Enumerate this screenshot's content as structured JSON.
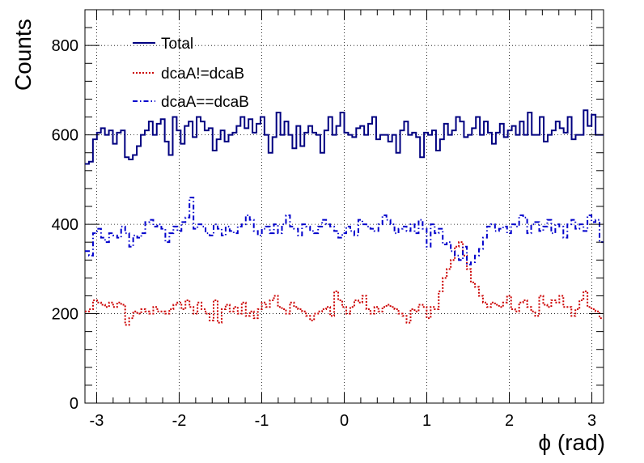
{
  "chart_data": {
    "type": "line",
    "title": "",
    "xlabel": "ϕ (rad)",
    "ylabel": "Counts",
    "xlim": [
      -3.1416,
      3.1416
    ],
    "ylim": [
      0,
      880
    ],
    "x_ticks": [
      -3,
      -2,
      -1,
      0,
      1,
      2,
      3
    ],
    "y_ticks": [
      0,
      200,
      400,
      600,
      800
    ],
    "grid": true,
    "legend": "top-left",
    "series": [
      {
        "name": "Total",
        "color": "#000080",
        "dash": "solid",
        "values": [
          535,
          540,
          590,
          605,
          615,
          600,
          610,
          580,
          605,
          610,
          550,
          545,
          555,
          575,
          600,
          610,
          630,
          600,
          625,
          635,
          585,
          555,
          640,
          610,
          580,
          620,
          630,
          595,
          640,
          630,
          610,
          615,
          565,
          590,
          610,
          585,
          600,
          605,
          620,
          640,
          615,
          635,
          605,
          625,
          640,
          600,
          560,
          595,
          650,
          600,
          630,
          600,
          570,
          620,
          575,
          605,
          620,
          605,
          600,
          560,
          610,
          640,
          600,
          620,
          650,
          605,
          600,
          595,
          615,
          620,
          600,
          625,
          640,
          590,
          600,
          600,
          585,
          600,
          560,
          610,
          630,
          600,
          605,
          595,
          550,
          605,
          600,
          610,
          565,
          590,
          625,
          600,
          610,
          640,
          630,
          595,
          600,
          615,
          640,
          600,
          630,
          605,
          580,
          605,
          625,
          595,
          610,
          620,
          600,
          630,
          600,
          650,
          600,
          600,
          640,
          585,
          600,
          610,
          630,
          615,
          605,
          640,
          590,
          600,
          600,
          655,
          620,
          645,
          600,
          600
        ]
      },
      {
        "name": "dcaA!=dcaB",
        "color": "#cc0000",
        "dash": "dotted",
        "values": [
          205,
          210,
          230,
          225,
          220,
          215,
          225,
          215,
          225,
          220,
          175,
          190,
          205,
          200,
          210,
          205,
          200,
          215,
          205,
          205,
          200,
          210,
          220,
          225,
          210,
          230,
          215,
          200,
          225,
          210,
          200,
          185,
          230,
          180,
          210,
          220,
          205,
          215,
          200,
          225,
          195,
          205,
          190,
          210,
          225,
          215,
          230,
          240,
          215,
          210,
          200,
          225,
          215,
          210,
          205,
          195,
          185,
          200,
          205,
          210,
          215,
          195,
          250,
          230,
          215,
          200,
          215,
          230,
          225,
          240,
          210,
          200,
          215,
          205,
          215,
          220,
          215,
          210,
          200,
          195,
          180,
          210,
          205,
          220,
          215,
          190,
          215,
          210,
          250,
          280,
          300,
          320,
          350,
          360,
          330,
          300,
          270,
          260,
          240,
          225,
          215,
          225,
          220,
          215,
          225,
          240,
          210,
          205,
          225,
          230,
          215,
          205,
          195,
          240,
          220,
          215,
          230,
          225,
          240,
          215,
          215,
          195,
          210,
          230,
          250,
          215,
          210,
          205,
          190
        ]
      },
      {
        "name": "dcaA==dcaB",
        "color": "#0000cc",
        "dash": "dashdot",
        "values": [
          340,
          330,
          380,
          390,
          370,
          360,
          380,
          375,
          370,
          395,
          380,
          350,
          375,
          370,
          380,
          405,
          410,
          395,
          400,
          390,
          360,
          380,
          395,
          385,
          405,
          415,
          460,
          390,
          400,
          395,
          380,
          375,
          400,
          390,
          375,
          395,
          385,
          380,
          395,
          400,
          420,
          410,
          385,
          375,
          390,
          395,
          380,
          400,
          380,
          400,
          420,
          395,
          390,
          375,
          400,
          395,
          385,
          380,
          395,
          410,
          400,
          395,
          385,
          370,
          380,
          395,
          385,
          375,
          410,
          400,
          395,
          390,
          385,
          400,
          420,
          410,
          400,
          380,
          390,
          395,
          385,
          400,
          380,
          410,
          390,
          350,
          400,
          380,
          390,
          355,
          360,
          340,
          330,
          320,
          350,
          310,
          315,
          330,
          345,
          370,
          395,
          400,
          385,
          390,
          395,
          380,
          400,
          395,
          420,
          415,
          380,
          400,
          405,
          385,
          395,
          410,
          380,
          400,
          395,
          370,
          400,
          410,
          390,
          400,
          385,
          420,
          405,
          410,
          360
        ]
      }
    ]
  }
}
